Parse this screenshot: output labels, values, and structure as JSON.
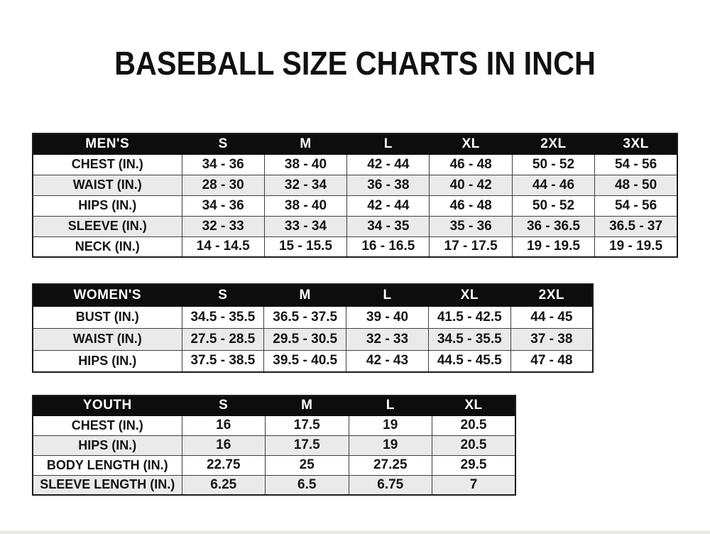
{
  "title": "BASEBALL SIZE CHARTS IN INCH",
  "colors": {
    "header_bg": "#0d0d0d",
    "header_text": "#ffffff",
    "row_alt_bg": "#eaeaea",
    "border_color": "#3f3f3f",
    "outer_border": "#1c1c1c",
    "text_color": "#141414",
    "page_bg": "#ffffff"
  },
  "chart_data": [
    {
      "type": "table",
      "name": "mens-size-table",
      "columns": [
        "MEN'S",
        "S",
        "M",
        "L",
        "XL",
        "2XL",
        "3XL"
      ],
      "rows": [
        [
          "CHEST (IN.)",
          "34 - 36",
          "38 - 40",
          "42 - 44",
          "46 - 48",
          "50 - 52",
          "54 - 56"
        ],
        [
          "WAIST (IN.)",
          "28 - 30",
          "32 - 34",
          "36 - 38",
          "40 - 42",
          "44 - 46",
          "48 - 50"
        ],
        [
          "HIPS (IN.)",
          "34 - 36",
          "38 - 40",
          "42 - 44",
          "46 - 48",
          "50 - 52",
          "54 - 56"
        ],
        [
          "SLEEVE (IN.)",
          "32 - 33",
          "33 - 34",
          "34 - 35",
          "35 - 36",
          "36 - 36.5",
          "36.5 - 37"
        ],
        [
          "NECK (IN.)",
          "14 - 14.5",
          "15 - 15.5",
          "16 - 16.5",
          "17 - 17.5",
          "19 - 19.5",
          "19 - 19.5"
        ]
      ]
    },
    {
      "type": "table",
      "name": "womens-size-table",
      "columns": [
        "WOMEN'S",
        "S",
        "M",
        "L",
        "XL",
        "2XL"
      ],
      "rows": [
        [
          "BUST (IN.)",
          "34.5 - 35.5",
          "36.5 - 37.5",
          "39 - 40",
          "41.5 - 42.5",
          "44 - 45"
        ],
        [
          "WAIST (IN.)",
          "27.5 - 28.5",
          "29.5 - 30.5",
          "32 - 33",
          "34.5 - 35.5",
          "37 - 38"
        ],
        [
          "HIPS (IN.)",
          "37.5 - 38.5",
          "39.5 - 40.5",
          "42 - 43",
          "44.5 - 45.5",
          "47 - 48"
        ]
      ]
    },
    {
      "type": "table",
      "name": "youth-size-table",
      "columns": [
        "YOUTH",
        "S",
        "M",
        "L",
        "XL"
      ],
      "rows": [
        [
          "CHEST (IN.)",
          "16",
          "17.5",
          "19",
          "20.5"
        ],
        [
          "HIPS (IN.)",
          "16",
          "17.5",
          "19",
          "20.5"
        ],
        [
          "BODY LENGTH (IN.)",
          "22.75",
          "25",
          "27.25",
          "29.5"
        ],
        [
          "SLEEVE LENGTH (IN.)",
          "6.25",
          "6.5",
          "6.75",
          "7"
        ]
      ]
    }
  ]
}
